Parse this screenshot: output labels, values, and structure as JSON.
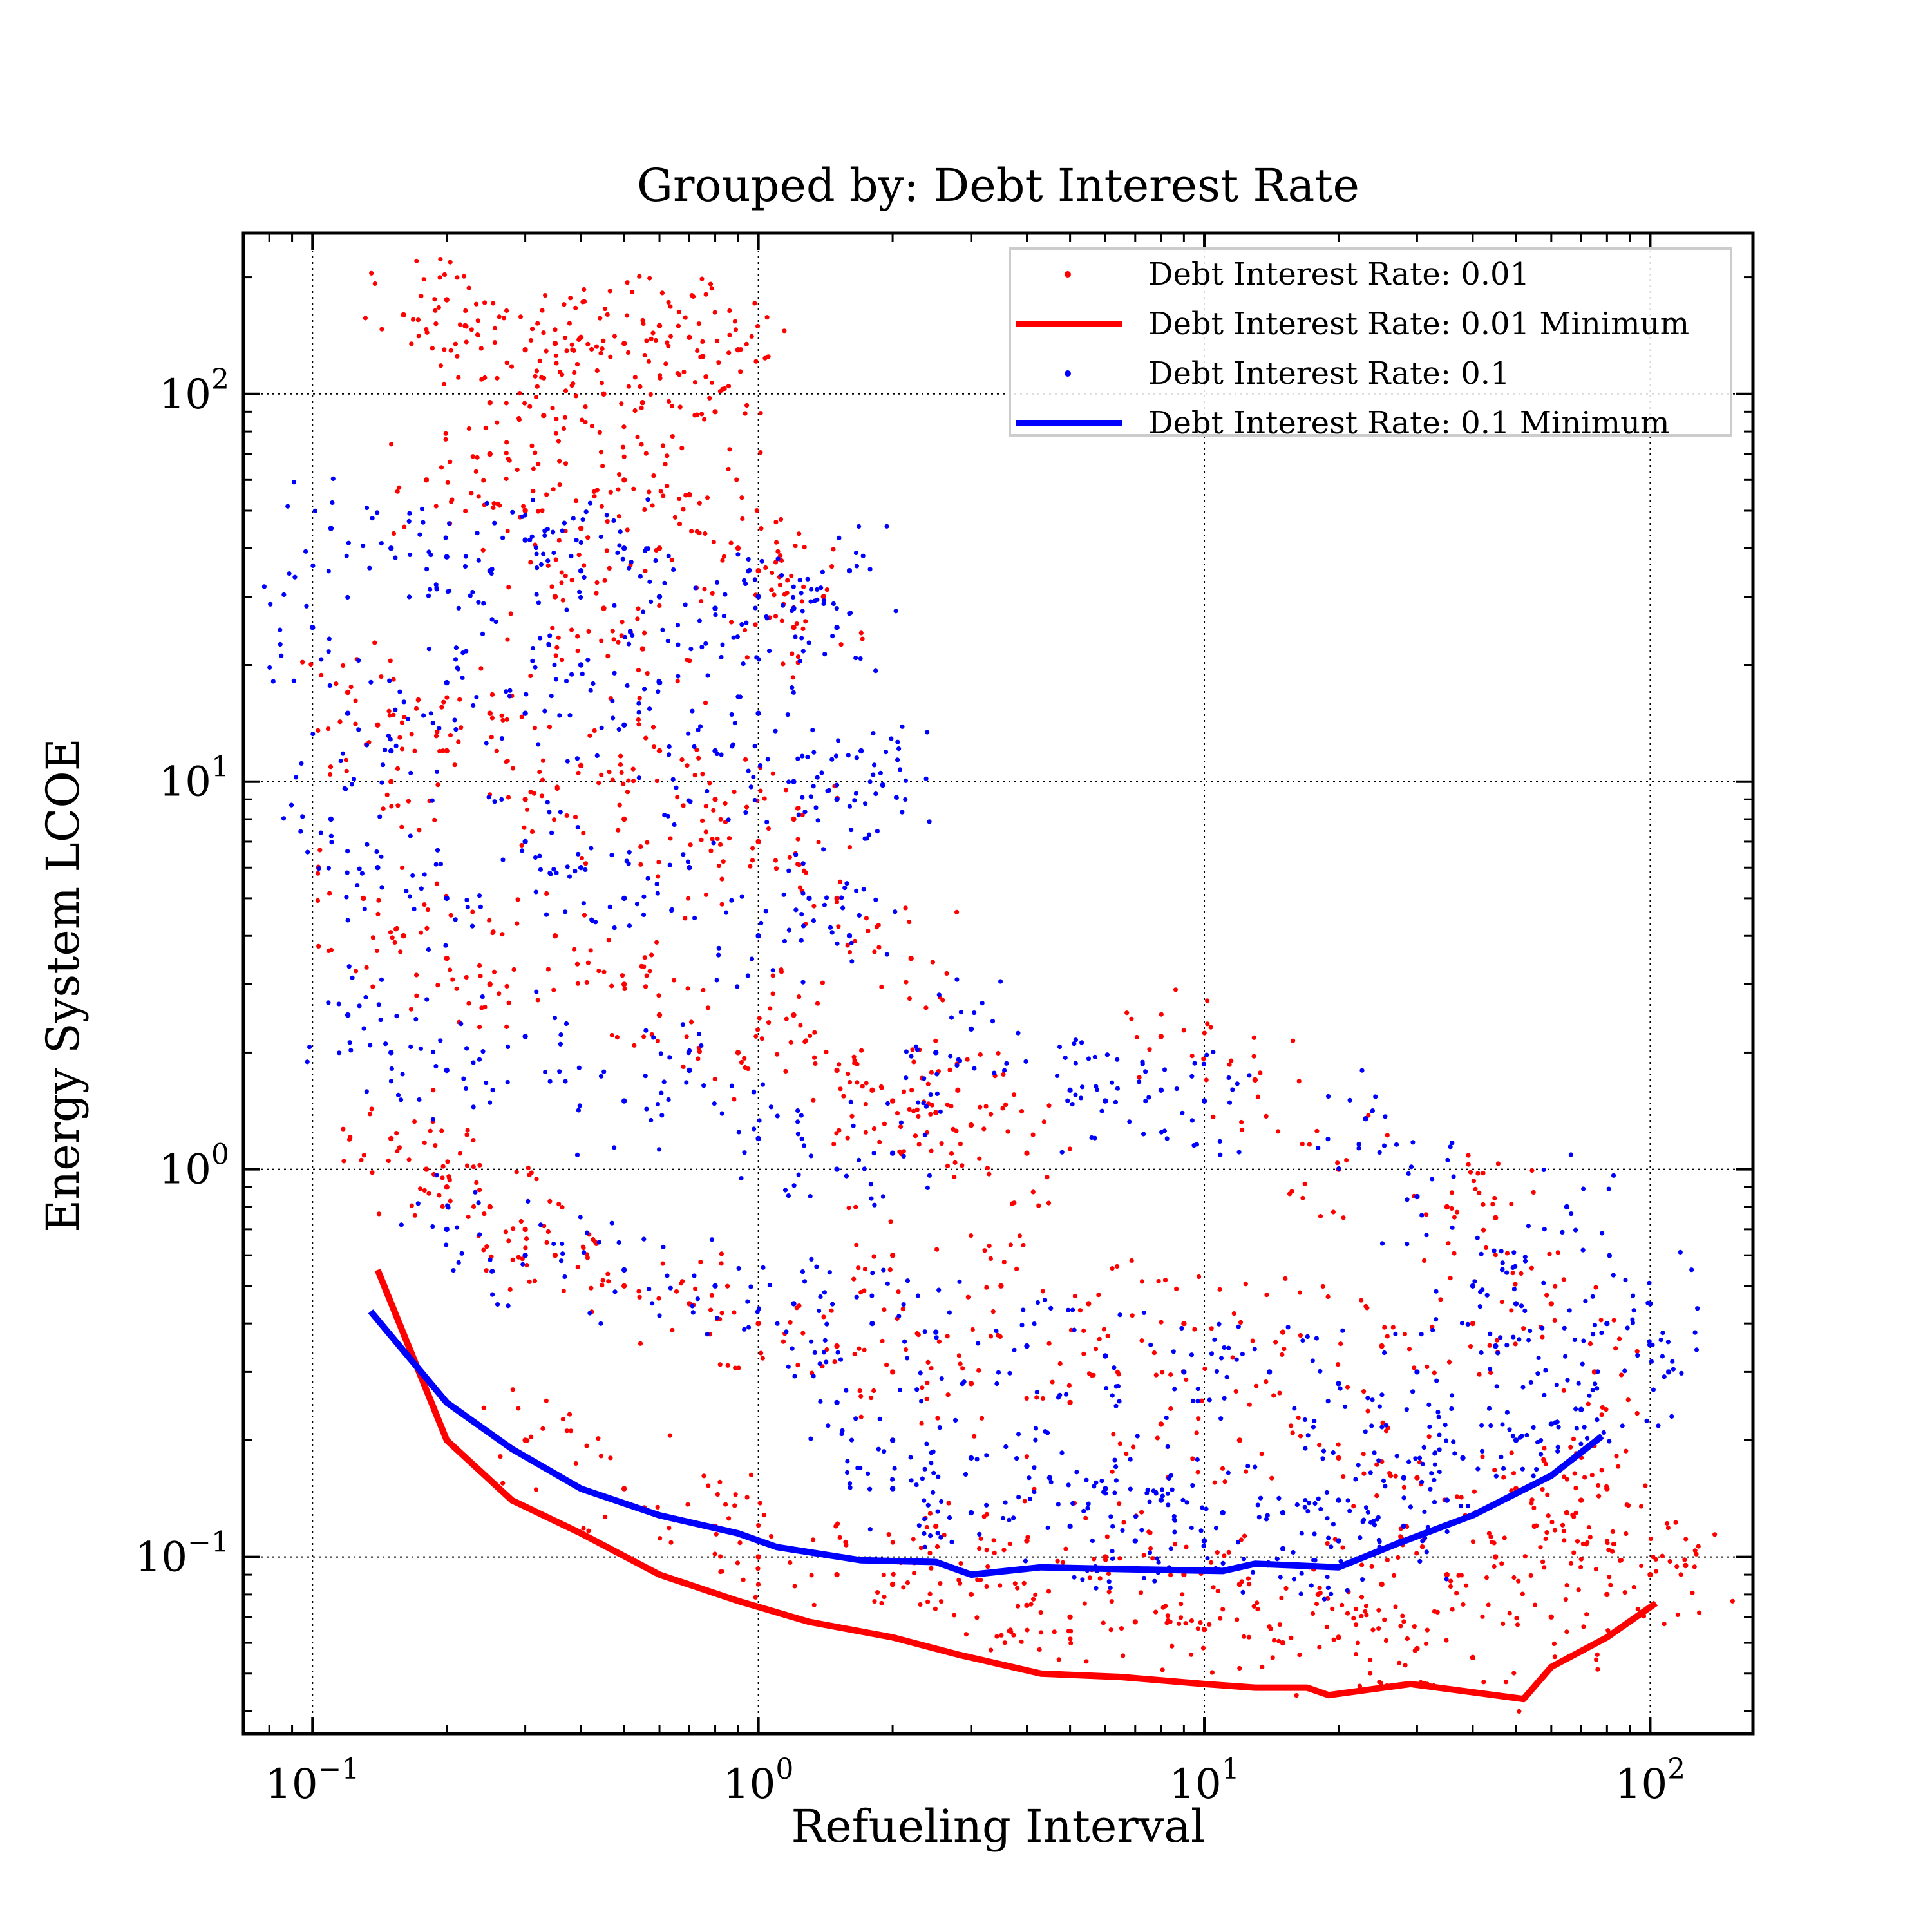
{
  "chart_data": {
    "type": "scatter",
    "title": "Grouped by: Debt Interest Rate",
    "xlabel": "Refueling Interval",
    "ylabel": "Energy System LCOE",
    "xscale": "log",
    "yscale": "log",
    "xlim": [
      0.07,
      170
    ],
    "ylim": [
      0.035,
      260
    ],
    "grid": true,
    "legend_position": "top-right",
    "x_ticks": [
      {
        "value": 0.1,
        "base": "10",
        "exp": "−1"
      },
      {
        "value": 1,
        "base": "10",
        "exp": "0"
      },
      {
        "value": 10,
        "base": "10",
        "exp": "1"
      },
      {
        "value": 100,
        "base": "10",
        "exp": "2"
      }
    ],
    "y_ticks": [
      {
        "value": 0.1,
        "base": "10",
        "exp": "−1"
      },
      {
        "value": 1,
        "base": "10",
        "exp": "0"
      },
      {
        "value": 10,
        "base": "10",
        "exp": "1"
      },
      {
        "value": 100,
        "base": "10",
        "exp": "2"
      }
    ],
    "legend": [
      {
        "label": "Debt Interest Rate: 0.01",
        "kind": "points",
        "color": "#ff0000"
      },
      {
        "label": "Debt Interest Rate: 0.01 Minimum",
        "kind": "line",
        "color": "#ff0000"
      },
      {
        "label": "Debt Interest Rate: 0.1",
        "kind": "points",
        "color": "#0000ff"
      },
      {
        "label": "Debt Interest Rate: 0.1 Minimum",
        "kind": "line",
        "color": "#0000ff"
      }
    ],
    "series": [
      {
        "name": "Debt Interest Rate: 0.01",
        "kind": "scatter",
        "color": "#ff0000",
        "points": [
          [
            0.16,
            160
          ],
          [
            0.2,
            175
          ],
          [
            0.22,
            150
          ],
          [
            0.3,
            130
          ],
          [
            0.35,
            135
          ],
          [
            0.4,
            140
          ],
          [
            0.5,
            135
          ],
          [
            0.6,
            150
          ],
          [
            0.7,
            140
          ],
          [
            0.75,
            125
          ],
          [
            0.9,
            130
          ],
          [
            0.25,
            95
          ],
          [
            0.33,
            88
          ],
          [
            0.45,
            100
          ],
          [
            0.55,
            95
          ],
          [
            0.8,
            90
          ],
          [
            0.18,
            60
          ],
          [
            0.25,
            70
          ],
          [
            0.3,
            50
          ],
          [
            0.4,
            45
          ],
          [
            0.5,
            60
          ],
          [
            0.6,
            40
          ],
          [
            0.7,
            55
          ],
          [
            0.9,
            40
          ],
          [
            1.0,
            35
          ],
          [
            1.2,
            25
          ],
          [
            1.4,
            30
          ],
          [
            0.35,
            30
          ],
          [
            0.45,
            28
          ],
          [
            0.55,
            22
          ],
          [
            0.12,
            17
          ],
          [
            0.14,
            14
          ],
          [
            0.15,
            10
          ],
          [
            0.2,
            12
          ],
          [
            0.25,
            15
          ],
          [
            0.3,
            9
          ],
          [
            0.4,
            11
          ],
          [
            0.5,
            8
          ],
          [
            0.6,
            12
          ],
          [
            0.8,
            9
          ],
          [
            1.0,
            7
          ],
          [
            1.2,
            8
          ],
          [
            1.5,
            5
          ],
          [
            0.7,
            6
          ],
          [
            0.13,
            5
          ],
          [
            0.16,
            4
          ],
          [
            0.2,
            3.5
          ],
          [
            0.25,
            3
          ],
          [
            0.35,
            4
          ],
          [
            0.5,
            3
          ],
          [
            0.6,
            2.5
          ],
          [
            0.9,
            2
          ],
          [
            1.2,
            2.5
          ],
          [
            1.5,
            1.8
          ],
          [
            1.8,
            1.6
          ],
          [
            2.0,
            1.5
          ],
          [
            2.5,
            1.4
          ],
          [
            3.0,
            1.3
          ],
          [
            2.2,
            3.5
          ],
          [
            2.8,
            1.6
          ],
          [
            8.0,
            2.2
          ],
          [
            4.0,
            1.1
          ],
          [
            13,
            1.7
          ],
          [
            0.15,
            1.2
          ],
          [
            0.18,
            1.0
          ],
          [
            0.2,
            0.9
          ],
          [
            0.25,
            0.8
          ],
          [
            0.3,
            0.7
          ],
          [
            0.35,
            0.6
          ],
          [
            0.5,
            0.5
          ],
          [
            0.7,
            0.45
          ],
          [
            1.0,
            0.4
          ],
          [
            1.5,
            0.35
          ],
          [
            2.0,
            0.3
          ],
          [
            3.0,
            0.28
          ],
          [
            5.0,
            0.25
          ],
          [
            8.0,
            0.22
          ],
          [
            12,
            0.2
          ],
          [
            20,
            0.18
          ],
          [
            30,
            0.16
          ],
          [
            50,
            0.15
          ],
          [
            70,
            0.14
          ],
          [
            0.3,
            0.2
          ],
          [
            0.5,
            0.15
          ],
          [
            0.8,
            0.12
          ],
          [
            1.0,
            0.1
          ],
          [
            1.5,
            0.09
          ],
          [
            2.0,
            0.085
          ],
          [
            3.0,
            0.08
          ],
          [
            4.0,
            0.075
          ],
          [
            5.0,
            0.07
          ],
          [
            7.0,
            0.068
          ],
          [
            10,
            0.065
          ],
          [
            15,
            0.06
          ],
          [
            20,
            0.062
          ],
          [
            30,
            0.058
          ],
          [
            40,
            0.055
          ],
          [
            60,
            0.07
          ],
          [
            80,
            0.08
          ],
          [
            100,
            0.09
          ],
          [
            120,
            0.095
          ],
          [
            2.5,
            0.12
          ],
          [
            4.0,
            0.11
          ],
          [
            6.0,
            0.1
          ],
          [
            9.0,
            0.09
          ],
          [
            12,
            0.085
          ],
          [
            18,
            0.08
          ],
          [
            25,
            0.085
          ],
          [
            35,
            0.09
          ],
          [
            45,
            0.1
          ],
          [
            55,
            0.12
          ],
          [
            65,
            0.13
          ],
          [
            80,
            0.15
          ],
          [
            2.0,
            0.6
          ],
          [
            3.5,
            0.5
          ],
          [
            5.5,
            0.45
          ],
          [
            9,
            0.4
          ],
          [
            15,
            0.38
          ],
          [
            25,
            0.35
          ],
          [
            40,
            0.4
          ],
          [
            60,
            0.45
          ],
          [
            75,
            0.3
          ],
          [
            20,
            1.0
          ],
          [
            35,
            0.8
          ],
          [
            45,
            0.75
          ]
        ]
      },
      {
        "name": "Debt Interest Rate: 0.1",
        "kind": "scatter",
        "color": "#0000ff",
        "points": [
          [
            0.11,
            45
          ],
          [
            0.15,
            40
          ],
          [
            0.2,
            38
          ],
          [
            0.25,
            35
          ],
          [
            0.3,
            42
          ],
          [
            0.4,
            35
          ],
          [
            0.5,
            40
          ],
          [
            0.6,
            30
          ],
          [
            0.8,
            28
          ],
          [
            1.0,
            30
          ],
          [
            1.2,
            28
          ],
          [
            1.5,
            25
          ],
          [
            1.6,
            35
          ],
          [
            0.1,
            25
          ],
          [
            0.12,
            15
          ],
          [
            0.15,
            12
          ],
          [
            0.2,
            18
          ],
          [
            0.3,
            15
          ],
          [
            0.4,
            20
          ],
          [
            0.5,
            14
          ],
          [
            0.6,
            18
          ],
          [
            0.8,
            12
          ],
          [
            1.0,
            15
          ],
          [
            1.2,
            10
          ],
          [
            1.5,
            9
          ],
          [
            1.7,
            12
          ],
          [
            1.9,
            9.8
          ],
          [
            0.11,
            8
          ],
          [
            0.14,
            6
          ],
          [
            0.2,
            5
          ],
          [
            0.3,
            7
          ],
          [
            0.4,
            6
          ],
          [
            0.5,
            5
          ],
          [
            0.7,
            6
          ],
          [
            1.0,
            4
          ],
          [
            1.3,
            5
          ],
          [
            1.6,
            4
          ],
          [
            0.12,
            2.5
          ],
          [
            0.15,
            2
          ],
          [
            0.2,
            1.8
          ],
          [
            0.3,
            2.2
          ],
          [
            0.5,
            1.5
          ],
          [
            0.7,
            1.8
          ],
          [
            1.0,
            1.2
          ],
          [
            1.5,
            1.0
          ],
          [
            2.0,
            1.1
          ],
          [
            2.5,
            2.0
          ],
          [
            3.0,
            2.3
          ],
          [
            5.0,
            1.6
          ],
          [
            6.0,
            1.5
          ],
          [
            8,
            1.6
          ],
          [
            10,
            1.5
          ],
          [
            23,
            1.35
          ],
          [
            0.2,
            0.7
          ],
          [
            0.3,
            0.6
          ],
          [
            0.5,
            0.55
          ],
          [
            0.8,
            0.5
          ],
          [
            1.2,
            0.45
          ],
          [
            1.8,
            0.4
          ],
          [
            2.5,
            0.38
          ],
          [
            4.0,
            0.35
          ],
          [
            6.0,
            0.33
          ],
          [
            9.0,
            0.3
          ],
          [
            14,
            0.3
          ],
          [
            20,
            0.28
          ],
          [
            30,
            0.3
          ],
          [
            45,
            0.35
          ],
          [
            65,
            0.8
          ],
          [
            80,
            0.4
          ],
          [
            100,
            0.45
          ],
          [
            110,
            0.3
          ],
          [
            1.5,
            0.25
          ],
          [
            2.0,
            0.2
          ],
          [
            3.0,
            0.18
          ],
          [
            4.5,
            0.16
          ],
          [
            6.0,
            0.15
          ],
          [
            8.0,
            0.14
          ],
          [
            11,
            0.13
          ],
          [
            15,
            0.13
          ],
          [
            20,
            0.14
          ],
          [
            28,
            0.16
          ],
          [
            38,
            0.18
          ],
          [
            50,
            0.2
          ],
          [
            60,
            0.22
          ],
          [
            70,
            0.24
          ],
          [
            2.0,
            0.15
          ],
          [
            3.0,
            0.13
          ],
          [
            5.0,
            0.12
          ],
          [
            7.0,
            0.11
          ],
          [
            10,
            0.11
          ],
          [
            15,
            0.105
          ],
          [
            20,
            0.11
          ],
          [
            28,
            0.12
          ],
          [
            35,
            0.14
          ],
          [
            30,
            0.85
          ],
          [
            40,
            0.5
          ],
          [
            50,
            0.45
          ]
        ]
      },
      {
        "name": "Debt Interest Rate: 0.01 Minimum",
        "kind": "line",
        "color": "#ff0000",
        "points": [
          [
            0.14,
            0.55
          ],
          [
            0.2,
            0.2
          ],
          [
            0.28,
            0.14
          ],
          [
            0.4,
            0.115
          ],
          [
            0.6,
            0.09
          ],
          [
            0.9,
            0.077
          ],
          [
            1.3,
            0.068
          ],
          [
            2.0,
            0.062
          ],
          [
            2.8,
            0.056
          ],
          [
            4.3,
            0.05
          ],
          [
            6.5,
            0.049
          ],
          [
            10,
            0.047
          ],
          [
            13,
            0.046
          ],
          [
            17,
            0.046
          ],
          [
            19,
            0.044
          ],
          [
            29,
            0.047
          ],
          [
            52,
            0.043
          ],
          [
            60,
            0.052
          ],
          [
            80,
            0.062
          ],
          [
            103,
            0.076
          ]
        ]
      },
      {
        "name": "Debt Interest Rate: 0.1 Minimum",
        "kind": "line",
        "color": "#0000ff",
        "points": [
          [
            0.135,
            0.43
          ],
          [
            0.2,
            0.25
          ],
          [
            0.28,
            0.19
          ],
          [
            0.4,
            0.15
          ],
          [
            0.6,
            0.128
          ],
          [
            0.9,
            0.115
          ],
          [
            1.1,
            0.106
          ],
          [
            1.7,
            0.098
          ],
          [
            2.5,
            0.097
          ],
          [
            3.0,
            0.09
          ],
          [
            4.3,
            0.094
          ],
          [
            6.5,
            0.093
          ],
          [
            11,
            0.092
          ],
          [
            13,
            0.096
          ],
          [
            20,
            0.094
          ],
          [
            27,
            0.108
          ],
          [
            40,
            0.128
          ],
          [
            60,
            0.162
          ],
          [
            78,
            0.205
          ]
        ]
      }
    ]
  }
}
